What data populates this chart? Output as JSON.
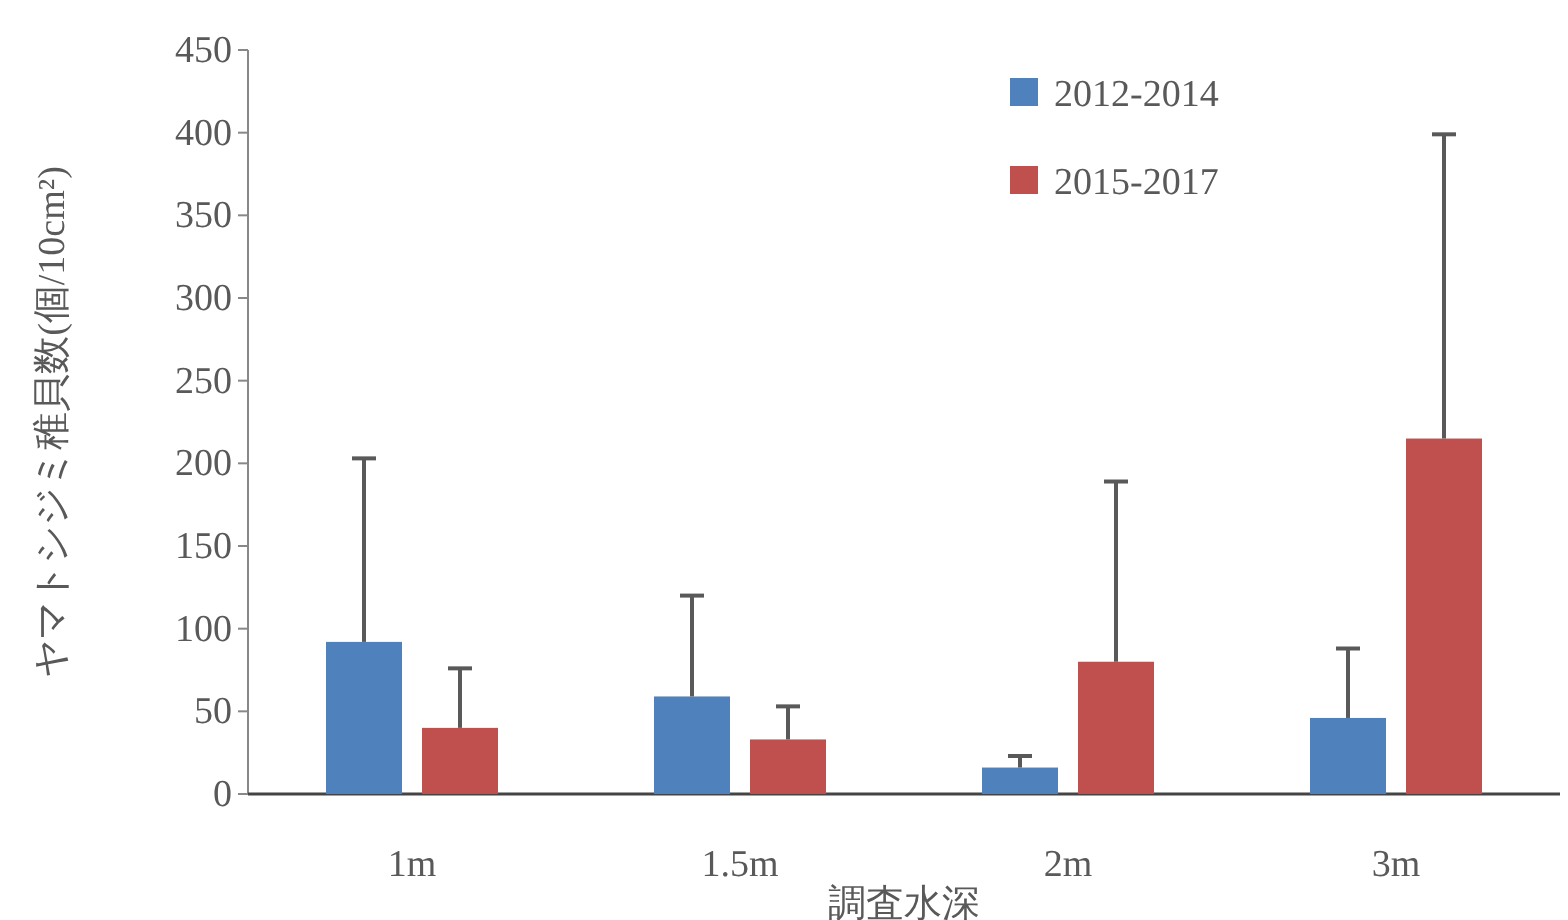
{
  "chart_data": {
    "type": "bar",
    "xlabel": "調査水深",
    "ylabel": "ヤマトシジミ稚貝数(個/10cm²)",
    "categories": [
      "1m",
      "1.5m",
      "2m",
      "3m"
    ],
    "series": [
      {
        "name": "2012-2014",
        "color": "#4f81bd",
        "values": [
          92,
          59,
          16,
          46
        ],
        "errors": [
          [
            92,
            203
          ],
          [
            59,
            120
          ],
          [
            16,
            23
          ],
          [
            46,
            88
          ]
        ]
      },
      {
        "name": "2015-2017",
        "color": "#c0504d",
        "values": [
          40,
          33,
          80,
          215
        ],
        "errors": [
          [
            40,
            76
          ],
          [
            33,
            53
          ],
          [
            80,
            189
          ],
          [
            215,
            399
          ]
        ]
      }
    ],
    "ylim": [
      0,
      450
    ],
    "yticks": [
      0,
      50,
      100,
      150,
      200,
      250,
      300,
      350,
      400,
      450
    ],
    "legend": "top right"
  }
}
